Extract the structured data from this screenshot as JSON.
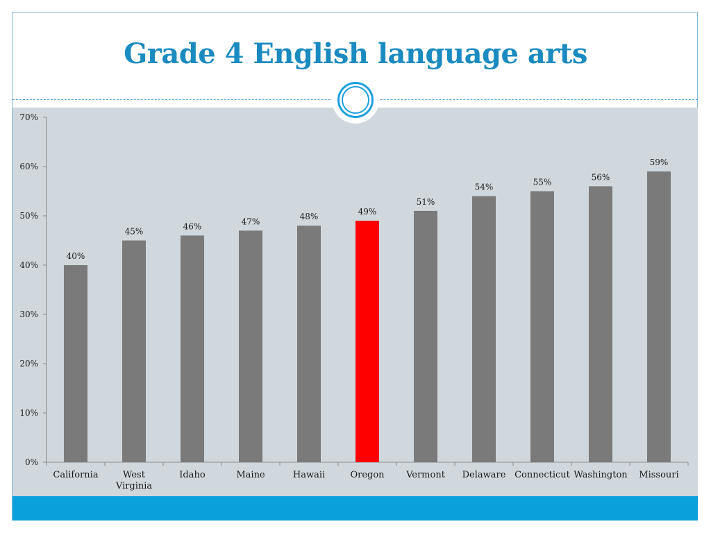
{
  "title": "Grade 4 English language arts",
  "colors": {
    "accent": "#1a8bc0",
    "bar_default": "#7a7a7a",
    "bar_highlight": "#ff0000",
    "plot_background": "#d0d8dd",
    "footer": "#0aa0dc"
  },
  "chart_data": {
    "type": "bar",
    "title": "",
    "xlabel": "",
    "ylabel": "",
    "ylim": [
      0,
      70
    ],
    "yticks": [
      "0%",
      "10%",
      "20%",
      "30%",
      "40%",
      "50%",
      "60%",
      "70%"
    ],
    "grid": false,
    "legend": "none",
    "categories": [
      "California",
      "West Virginia",
      "Idaho",
      "Maine",
      "Hawaii",
      "Oregon",
      "Vermont",
      "Delaware",
      "Connecticut",
      "Washington",
      "Missouri"
    ],
    "category_labels": [
      [
        "California"
      ],
      [
        "West",
        "Virginia"
      ],
      [
        "Idaho"
      ],
      [
        "Maine"
      ],
      [
        "Hawaii"
      ],
      [
        "Oregon"
      ],
      [
        "Vermont"
      ],
      [
        "Delaware"
      ],
      [
        "Connecticut"
      ],
      [
        "Washington"
      ],
      [
        "Missouri"
      ]
    ],
    "values": [
      40,
      45,
      46,
      47,
      48,
      49,
      51,
      54,
      55,
      56,
      59
    ],
    "data_labels": [
      "40%",
      "45%",
      "46%",
      "47%",
      "48%",
      "49%",
      "51%",
      "54%",
      "55%",
      "56%",
      "59%"
    ],
    "highlight_category": "Oregon"
  }
}
